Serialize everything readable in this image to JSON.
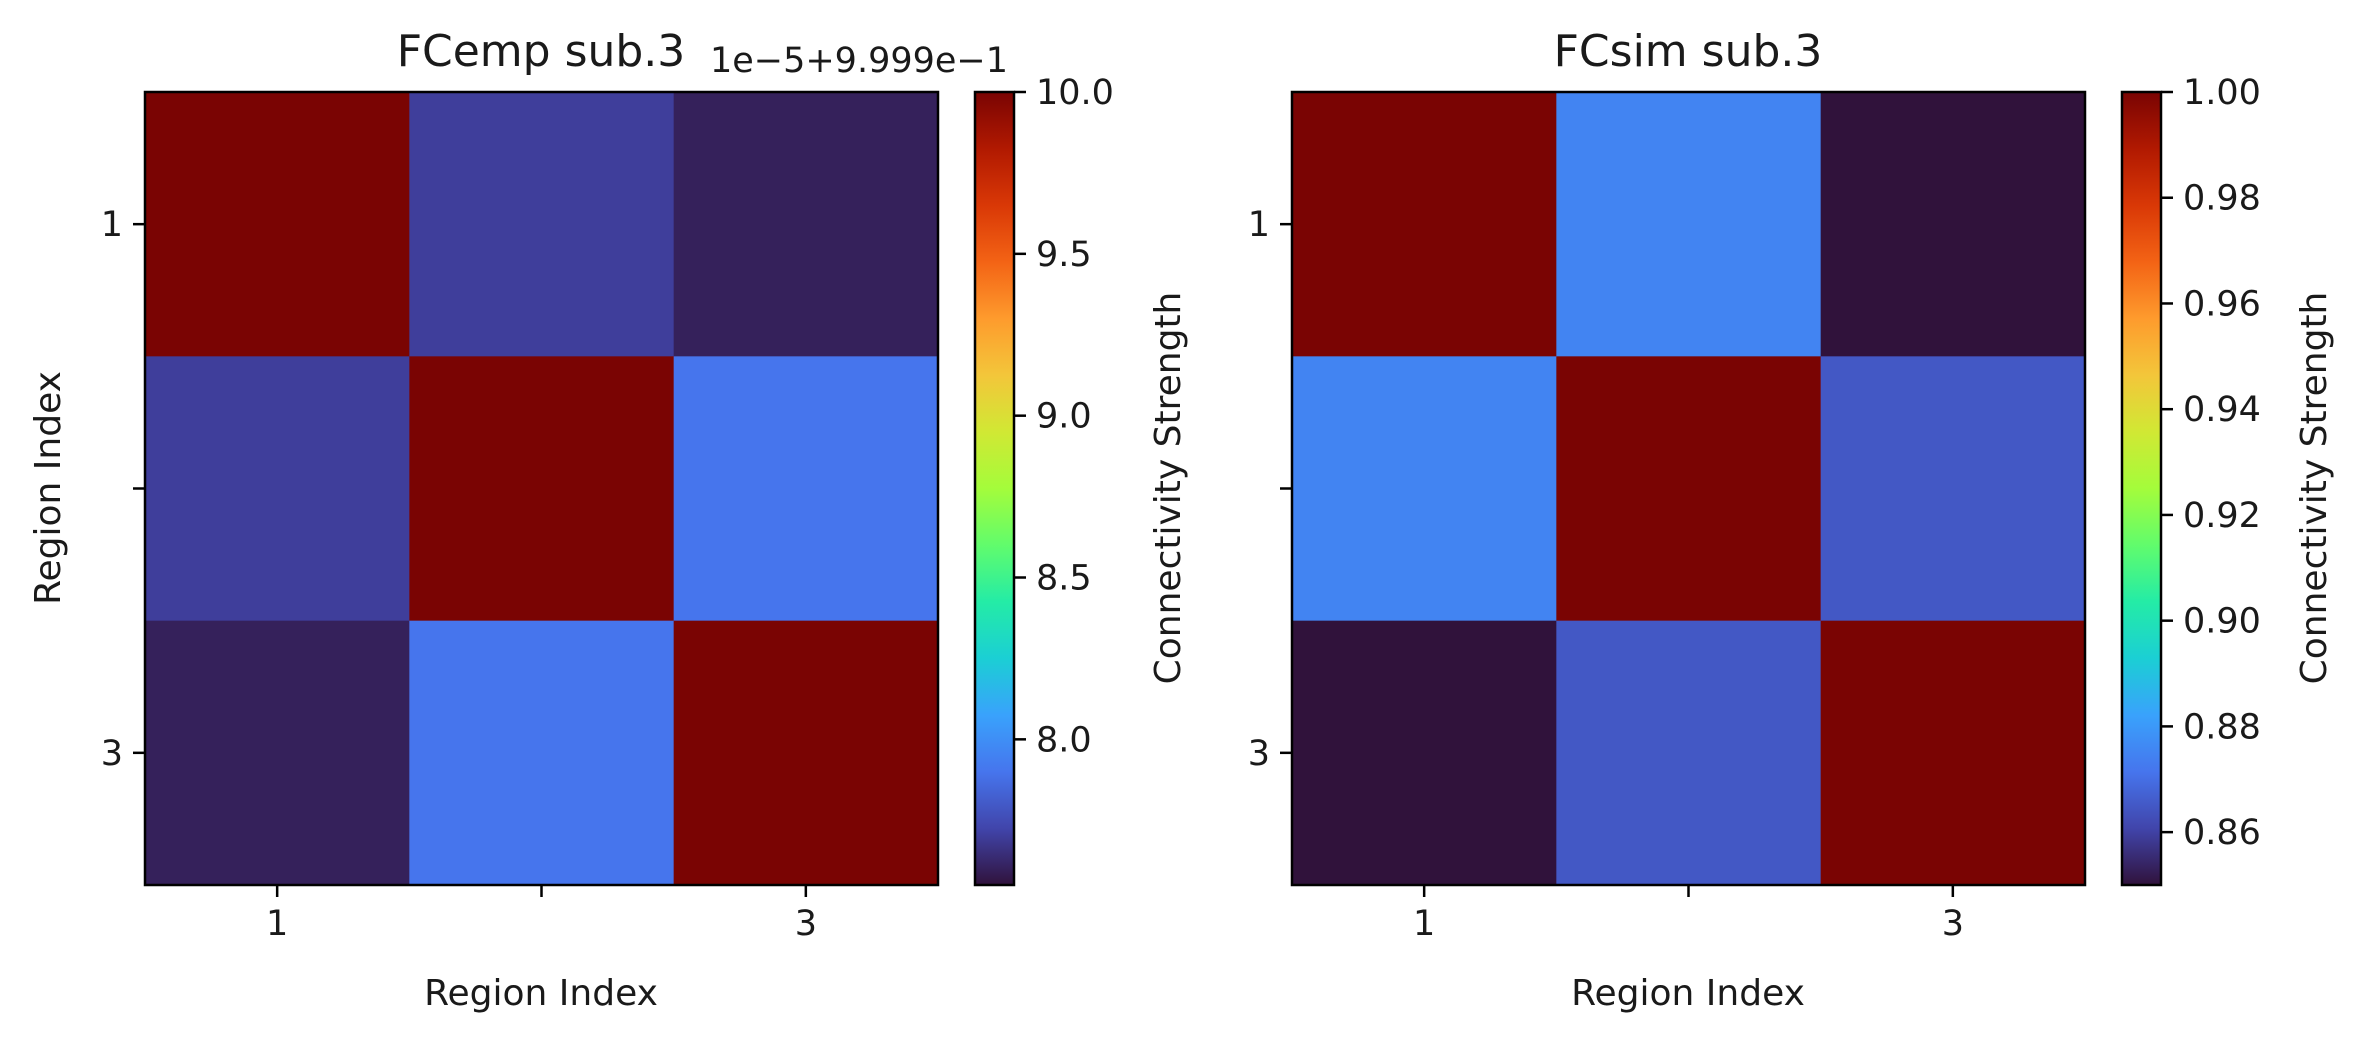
{
  "colors": {
    "turbo": [
      "#30123b",
      "#4145ab",
      "#4675ed",
      "#39a2fc",
      "#1bcfd4",
      "#24eca6",
      "#61fc6c",
      "#a4fc3b",
      "#d1e834",
      "#f3c63a",
      "#fe9b2d",
      "#f36315",
      "#d93806",
      "#b11901",
      "#7a0403"
    ]
  },
  "chart_data": [
    {
      "type": "heatmap",
      "title": "FCemp sub.3",
      "xlabel": "Region Index",
      "ylabel": "Region Index",
      "x_ticks": [
        "1",
        "",
        "3"
      ],
      "y_ticks": [
        "1",
        "",
        "3"
      ],
      "values": [
        [
          0.99991,
          0.9999077,
          0.9999076
        ],
        [
          0.9999077,
          0.99991,
          0.9999079
        ],
        [
          0.9999076,
          0.9999079,
          0.99991
        ]
      ],
      "vmin": 0.99990755,
      "vmax": 0.99991,
      "colorbar": {
        "label": "Connectivity Strength",
        "offset_text": "1e−5+9.999e−1",
        "tick_values": [
          0.999908,
          0.9999085,
          0.999909,
          0.9999095,
          0.99991
        ],
        "tick_labels": [
          "8.0",
          "8.5",
          "9.0",
          "9.5",
          "10.0"
        ]
      },
      "colormap": "turbo"
    },
    {
      "type": "heatmap",
      "title": "FCsim sub.3",
      "xlabel": "Region Index",
      "ylabel": "",
      "x_ticks": [
        "1",
        "",
        "3"
      ],
      "y_ticks": [
        "1",
        "",
        "3"
      ],
      "values": [
        [
          1.0,
          0.875,
          0.85
        ],
        [
          0.875,
          1.0,
          0.865
        ],
        [
          0.85,
          0.865,
          1.0
        ]
      ],
      "vmin": 0.85,
      "vmax": 1.0,
      "colorbar": {
        "label": "Connectivity Strength",
        "offset_text": "",
        "tick_values": [
          0.86,
          0.88,
          0.9,
          0.92,
          0.94,
          0.96,
          0.98,
          1.0
        ],
        "tick_labels": [
          "0.86",
          "0.88",
          "0.90",
          "0.92",
          "0.94",
          "0.96",
          "0.98",
          "1.00"
        ]
      },
      "colormap": "turbo"
    }
  ]
}
